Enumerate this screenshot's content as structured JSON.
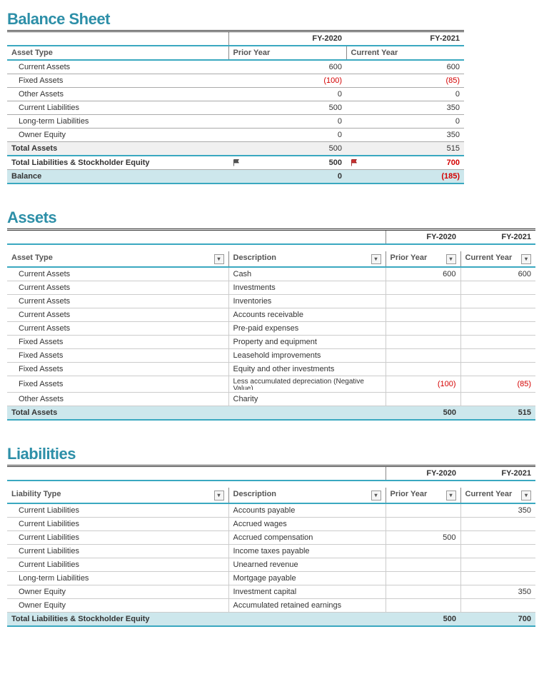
{
  "fy_prior": "FY-2020",
  "fy_current": "FY-2021",
  "prior_year_label": "Prior Year",
  "current_year_label": "Current Year",
  "balance_sheet": {
    "title": "Balance Sheet",
    "type_header": "Asset Type",
    "rows": [
      {
        "label": "Current Assets",
        "prior": "600",
        "current": "600",
        "neg": false
      },
      {
        "label": "Fixed Assets",
        "prior": "(100)",
        "current": "(85)",
        "neg": true
      },
      {
        "label": "Other Assets",
        "prior": "0",
        "current": "0",
        "neg": false
      },
      {
        "label": "Current Liabilities",
        "prior": "500",
        "current": "350",
        "neg": false
      },
      {
        "label": "Long-term Liabilities",
        "prior": "0",
        "current": "0",
        "neg": false
      },
      {
        "label": "Owner Equity",
        "prior": "0",
        "current": "350",
        "neg": false
      }
    ],
    "total_assets": {
      "label": "Total Assets",
      "prior": "500",
      "current": "515"
    },
    "total_liab": {
      "label": "Total Liabilities & Stockholder Equity",
      "prior": "500",
      "current": "700",
      "prior_flag": true,
      "current_flag": true,
      "current_neg": true
    },
    "balance": {
      "label": "Balance",
      "prior": "0",
      "current": "(185)",
      "current_neg": true
    }
  },
  "assets": {
    "title": "Assets",
    "type_header": "Asset Type",
    "desc_header": "Description",
    "rows": [
      {
        "type": "Current Assets",
        "desc": "Cash",
        "prior": "600",
        "current": "600"
      },
      {
        "type": "Current Assets",
        "desc": "Investments",
        "prior": "",
        "current": ""
      },
      {
        "type": "Current Assets",
        "desc": "Inventories",
        "prior": "",
        "current": ""
      },
      {
        "type": "Current Assets",
        "desc": "Accounts receivable",
        "prior": "",
        "current": ""
      },
      {
        "type": "Current Assets",
        "desc": "Pre-paid expenses",
        "prior": "",
        "current": ""
      },
      {
        "type": "Fixed Assets",
        "desc": "Property and equipment",
        "prior": "",
        "current": ""
      },
      {
        "type": "Fixed Assets",
        "desc": "Leasehold improvements",
        "prior": "",
        "current": ""
      },
      {
        "type": "Fixed Assets",
        "desc": "Equity and other investments",
        "prior": "",
        "current": ""
      },
      {
        "type": "Fixed Assets",
        "desc": "Less accumulated depreciation (Negative Value)",
        "prior": "(100)",
        "current": "(85)",
        "neg": true,
        "truncate": true
      },
      {
        "type": "Other Assets",
        "desc": "Charity",
        "prior": "",
        "current": ""
      }
    ],
    "total": {
      "label": "Total Assets",
      "prior": "500",
      "current": "515"
    }
  },
  "liabilities": {
    "title": "Liabilities",
    "type_header": "Liability Type",
    "desc_header": "Description",
    "rows": [
      {
        "type": "Current Liabilities",
        "desc": "Accounts payable",
        "prior": "",
        "current": "350"
      },
      {
        "type": "Current Liabilities",
        "desc": "Accrued wages",
        "prior": "",
        "current": ""
      },
      {
        "type": "Current Liabilities",
        "desc": "Accrued compensation",
        "prior": "500",
        "current": ""
      },
      {
        "type": "Current Liabilities",
        "desc": "Income taxes payable",
        "prior": "",
        "current": ""
      },
      {
        "type": "Current Liabilities",
        "desc": "Unearned revenue",
        "prior": "",
        "current": ""
      },
      {
        "type": "Long-term Liabilities",
        "desc": "Mortgage payable",
        "prior": "",
        "current": ""
      },
      {
        "type": "Owner Equity",
        "desc": "Investment capital",
        "prior": "",
        "current": "350"
      },
      {
        "type": "Owner Equity",
        "desc": "Accumulated retained earnings",
        "prior": "",
        "current": ""
      }
    ],
    "total": {
      "label": "Total Liabilities & Stockholder Equity",
      "prior": "500",
      "current": "700"
    }
  },
  "colors": {
    "title": "#2d8fa8",
    "teal_rule": "#3aa8c0",
    "teal_shade": "#cde7ec",
    "grey_shade": "#f0f0f0",
    "negative": "#d40000"
  }
}
